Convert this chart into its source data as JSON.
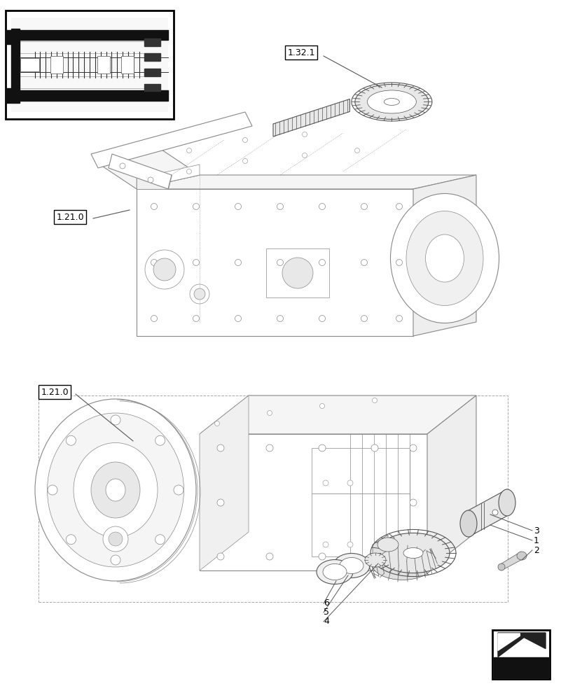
{
  "bg_color": "#ffffff",
  "line_color": "#888888",
  "line_color_dark": "#555555",
  "label_color": "#000000",
  "fig_width": 8.12,
  "fig_height": 10.0,
  "dpi": 100,
  "labels": {
    "1321": "1.32.1",
    "1210_top": "1.21.0",
    "1210_bot": "1.21.0"
  }
}
